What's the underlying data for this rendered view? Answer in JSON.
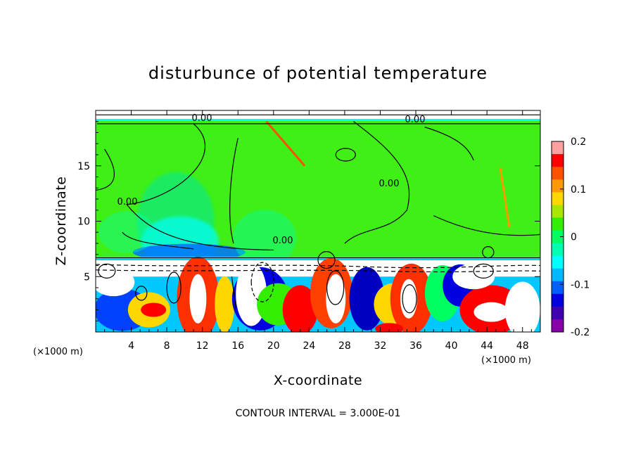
{
  "chart_data": {
    "type": "heatmap",
    "title": "disturbunce of potential temperature",
    "xlabel": "X-coordinate",
    "ylabel": "Z-coordinate",
    "x_unit": "(×1000 m)",
    "xlim": [
      0,
      50
    ],
    "ylim": [
      0,
      20
    ],
    "x_ticks": [
      4,
      8,
      12,
      16,
      20,
      24,
      28,
      32,
      36,
      40,
      44,
      48
    ],
    "y_ticks": [
      5,
      10,
      15
    ],
    "colorbar": {
      "range": [
        -0.2,
        0.2
      ],
      "tick_values": [
        0.2,
        0.1,
        0,
        -0.1,
        -0.2
      ],
      "tick_labels": [
        "0.2",
        "0.1",
        "0",
        "-0.1",
        "-0.2"
      ],
      "colors": [
        "#ffa0a0",
        "#ff0000",
        "#ff5000",
        "#ff9900",
        "#ffd700",
        "#a8e800",
        "#33ee00",
        "#00ff60",
        "#00ffb0",
        "#00ffff",
        "#00b8ff",
        "#0060ff",
        "#0000e0",
        "#4000b0",
        "#8800a8"
      ]
    },
    "contour_labels": [
      {
        "x": 24.5,
        "y": 19.1,
        "text": "0.00"
      },
      {
        "x": 47,
        "y": 19.0,
        "text": "0.00"
      },
      {
        "x": 43.8,
        "y": 13.2,
        "text": "0.00"
      },
      {
        "x": 2.9,
        "y": 11.7,
        "text": "0.00"
      },
      {
        "x": 31.1,
        "y": 8.0,
        "text": "0.00"
      }
    ],
    "inversion_layer_height": 6.5,
    "contour_interval_text": "CONTOUR INTERVAL = 3.000E-01"
  }
}
